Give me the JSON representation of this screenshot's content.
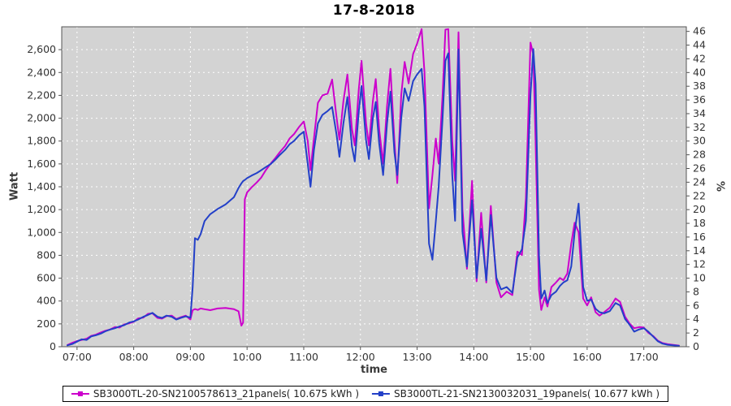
{
  "title": "17-8-2018",
  "chart_data": {
    "type": "line",
    "title": "17-8-2018",
    "xlabel": "time",
    "ylabel_left": "Watt",
    "ylabel_right": "%",
    "x_unit": "decimal_hours",
    "xlim": [
      6.73,
      17.75
    ],
    "ylim_left": [
      0,
      2800
    ],
    "ylim_right": [
      0,
      46.67
    ],
    "grid": true,
    "plot_bg": "#d3d3d3",
    "grid_color": "#ffffff",
    "border_color": "#555555",
    "tick_color": "#555555",
    "label_color": "#333333",
    "legend_position": "bottom",
    "x_ticks": [
      {
        "label": "07:00",
        "value": 7
      },
      {
        "label": "08:00",
        "value": 8
      },
      {
        "label": "09:00",
        "value": 9
      },
      {
        "label": "10:00",
        "value": 10
      },
      {
        "label": "11:00",
        "value": 11
      },
      {
        "label": "12:00",
        "value": 12
      },
      {
        "label": "13:00",
        "value": 13
      },
      {
        "label": "14:00",
        "value": 14
      },
      {
        "label": "15:00",
        "value": 15
      },
      {
        "label": "16:00",
        "value": 16
      },
      {
        "label": "17:00",
        "value": 17
      }
    ],
    "y_ticks_left": [
      0,
      200,
      400,
      600,
      800,
      1000,
      1200,
      1400,
      1600,
      1800,
      2000,
      2200,
      2400,
      2600
    ],
    "y_ticks_right": [
      0,
      2,
      4,
      6,
      8,
      10,
      12,
      14,
      16,
      18,
      20,
      22,
      24,
      26,
      28,
      30,
      32,
      34,
      36,
      38,
      40,
      42,
      44,
      46
    ],
    "x": [
      6.83,
      6.92,
      7.0,
      7.08,
      7.17,
      7.25,
      7.33,
      7.42,
      7.5,
      7.58,
      7.67,
      7.75,
      7.83,
      7.92,
      8.0,
      8.08,
      8.17,
      8.25,
      8.33,
      8.42,
      8.5,
      8.58,
      8.67,
      8.75,
      8.83,
      8.92,
      9.0,
      9.04,
      9.08,
      9.13,
      9.18,
      9.25,
      9.35,
      9.48,
      9.62,
      9.77,
      9.85,
      9.9,
      9.93,
      9.96,
      10.0,
      10.08,
      10.17,
      10.25,
      10.33,
      10.42,
      10.5,
      10.58,
      10.67,
      10.75,
      10.83,
      10.92,
      11.0,
      11.07,
      11.12,
      11.18,
      11.25,
      11.33,
      11.42,
      11.5,
      11.58,
      11.63,
      11.7,
      11.77,
      11.85,
      11.9,
      11.97,
      12.02,
      12.1,
      12.15,
      12.22,
      12.27,
      12.33,
      12.4,
      12.47,
      12.53,
      12.6,
      12.65,
      12.72,
      12.78,
      12.85,
      12.93,
      13.0,
      13.08,
      13.13,
      13.21,
      13.27,
      13.33,
      13.38,
      13.45,
      13.5,
      13.55,
      13.62,
      13.67,
      13.73,
      13.8,
      13.88,
      13.97,
      14.05,
      14.13,
      14.22,
      14.3,
      14.4,
      14.48,
      14.58,
      14.68,
      14.77,
      14.85,
      14.92,
      15.0,
      15.05,
      15.09,
      15.15,
      15.19,
      15.25,
      15.3,
      15.37,
      15.45,
      15.52,
      15.58,
      15.65,
      15.72,
      15.78,
      15.85,
      15.93,
      16.0,
      16.07,
      16.15,
      16.22,
      16.3,
      16.4,
      16.5,
      16.58,
      16.67,
      16.75,
      16.83,
      16.92,
      17.0,
      17.08,
      17.17,
      17.25,
      17.33,
      17.42,
      17.55,
      17.62
    ],
    "series": [
      {
        "name": "SB3000TL-20-SN2100578613_21panels( 10.675 kWh )",
        "color": "#cc00cc",
        "values": [
          15,
          35,
          50,
          60,
          70,
          95,
          105,
          125,
          140,
          150,
          172,
          168,
          195,
          205,
          218,
          248,
          255,
          288,
          292,
          252,
          246,
          268,
          272,
          242,
          258,
          272,
          238,
          320,
          330,
          322,
          335,
          328,
          320,
          335,
          340,
          328,
          310,
          185,
          210,
          1290,
          1350,
          1395,
          1438,
          1480,
          1545,
          1605,
          1652,
          1705,
          1755,
          1822,
          1862,
          1925,
          1972,
          1800,
          1545,
          1820,
          2135,
          2200,
          2215,
          2338,
          2005,
          1812,
          2150,
          2382,
          1905,
          1762,
          2250,
          2502,
          1955,
          1762,
          2152,
          2342,
          1905,
          1602,
          2105,
          2432,
          1805,
          1432,
          2205,
          2492,
          2305,
          2562,
          2652,
          2780,
          2402,
          1212,
          1502,
          1822,
          1602,
          2202,
          2775,
          2780,
          1802,
          1452,
          2752,
          1202,
          682,
          1452,
          572,
          1172,
          562,
          1232,
          562,
          432,
          482,
          452,
          832,
          802,
          1302,
          2662,
          2558,
          1800,
          502,
          322,
          432,
          352,
          522,
          562,
          602,
          582,
          642,
          902,
          1085,
          1002,
          422,
          362,
          432,
          302,
          272,
          302,
          342,
          422,
          392,
          262,
          202,
          162,
          172,
          168,
          122,
          92,
          52,
          32,
          22,
          14,
          10
        ]
      },
      {
        "name": "SB3000TL-21-SN2130032031_19panels( 10.677 kWh )",
        "color": "#2340c8",
        "values": [
          12,
          25,
          45,
          65,
          60,
          90,
          100,
          115,
          135,
          150,
          162,
          178,
          188,
          212,
          222,
          238,
          262,
          278,
          296,
          262,
          252,
          272,
          262,
          238,
          252,
          266,
          255,
          520,
          950,
          935,
          985,
          1100,
          1160,
          1205,
          1245,
          1310,
          1390,
          1430,
          1450,
          1460,
          1475,
          1498,
          1520,
          1545,
          1572,
          1600,
          1638,
          1680,
          1722,
          1772,
          1802,
          1852,
          1882,
          1600,
          1400,
          1720,
          1955,
          2030,
          2062,
          2098,
          1855,
          1662,
          1955,
          2185,
          1752,
          1622,
          2055,
          2282,
          1805,
          1642,
          2002,
          2142,
          1782,
          1502,
          1952,
          2232,
          1702,
          1502,
          2002,
          2262,
          2152,
          2325,
          2382,
          2432,
          2102,
          902,
          762,
          1102,
          1402,
          2002,
          2502,
          2568,
          1502,
          1102,
          2602,
          1002,
          702,
          1282,
          602,
          1032,
          582,
          1152,
          602,
          502,
          522,
          472,
          782,
          852,
          1102,
          2202,
          2605,
          2300,
          802,
          422,
          492,
          382,
          452,
          482,
          532,
          562,
          582,
          702,
          1002,
          1252,
          522,
          402,
          412,
          332,
          302,
          292,
          312,
          382,
          362,
          242,
          192,
          132,
          152,
          162,
          132,
          87,
          47,
          27,
          17,
          11,
          8
        ]
      }
    ]
  }
}
